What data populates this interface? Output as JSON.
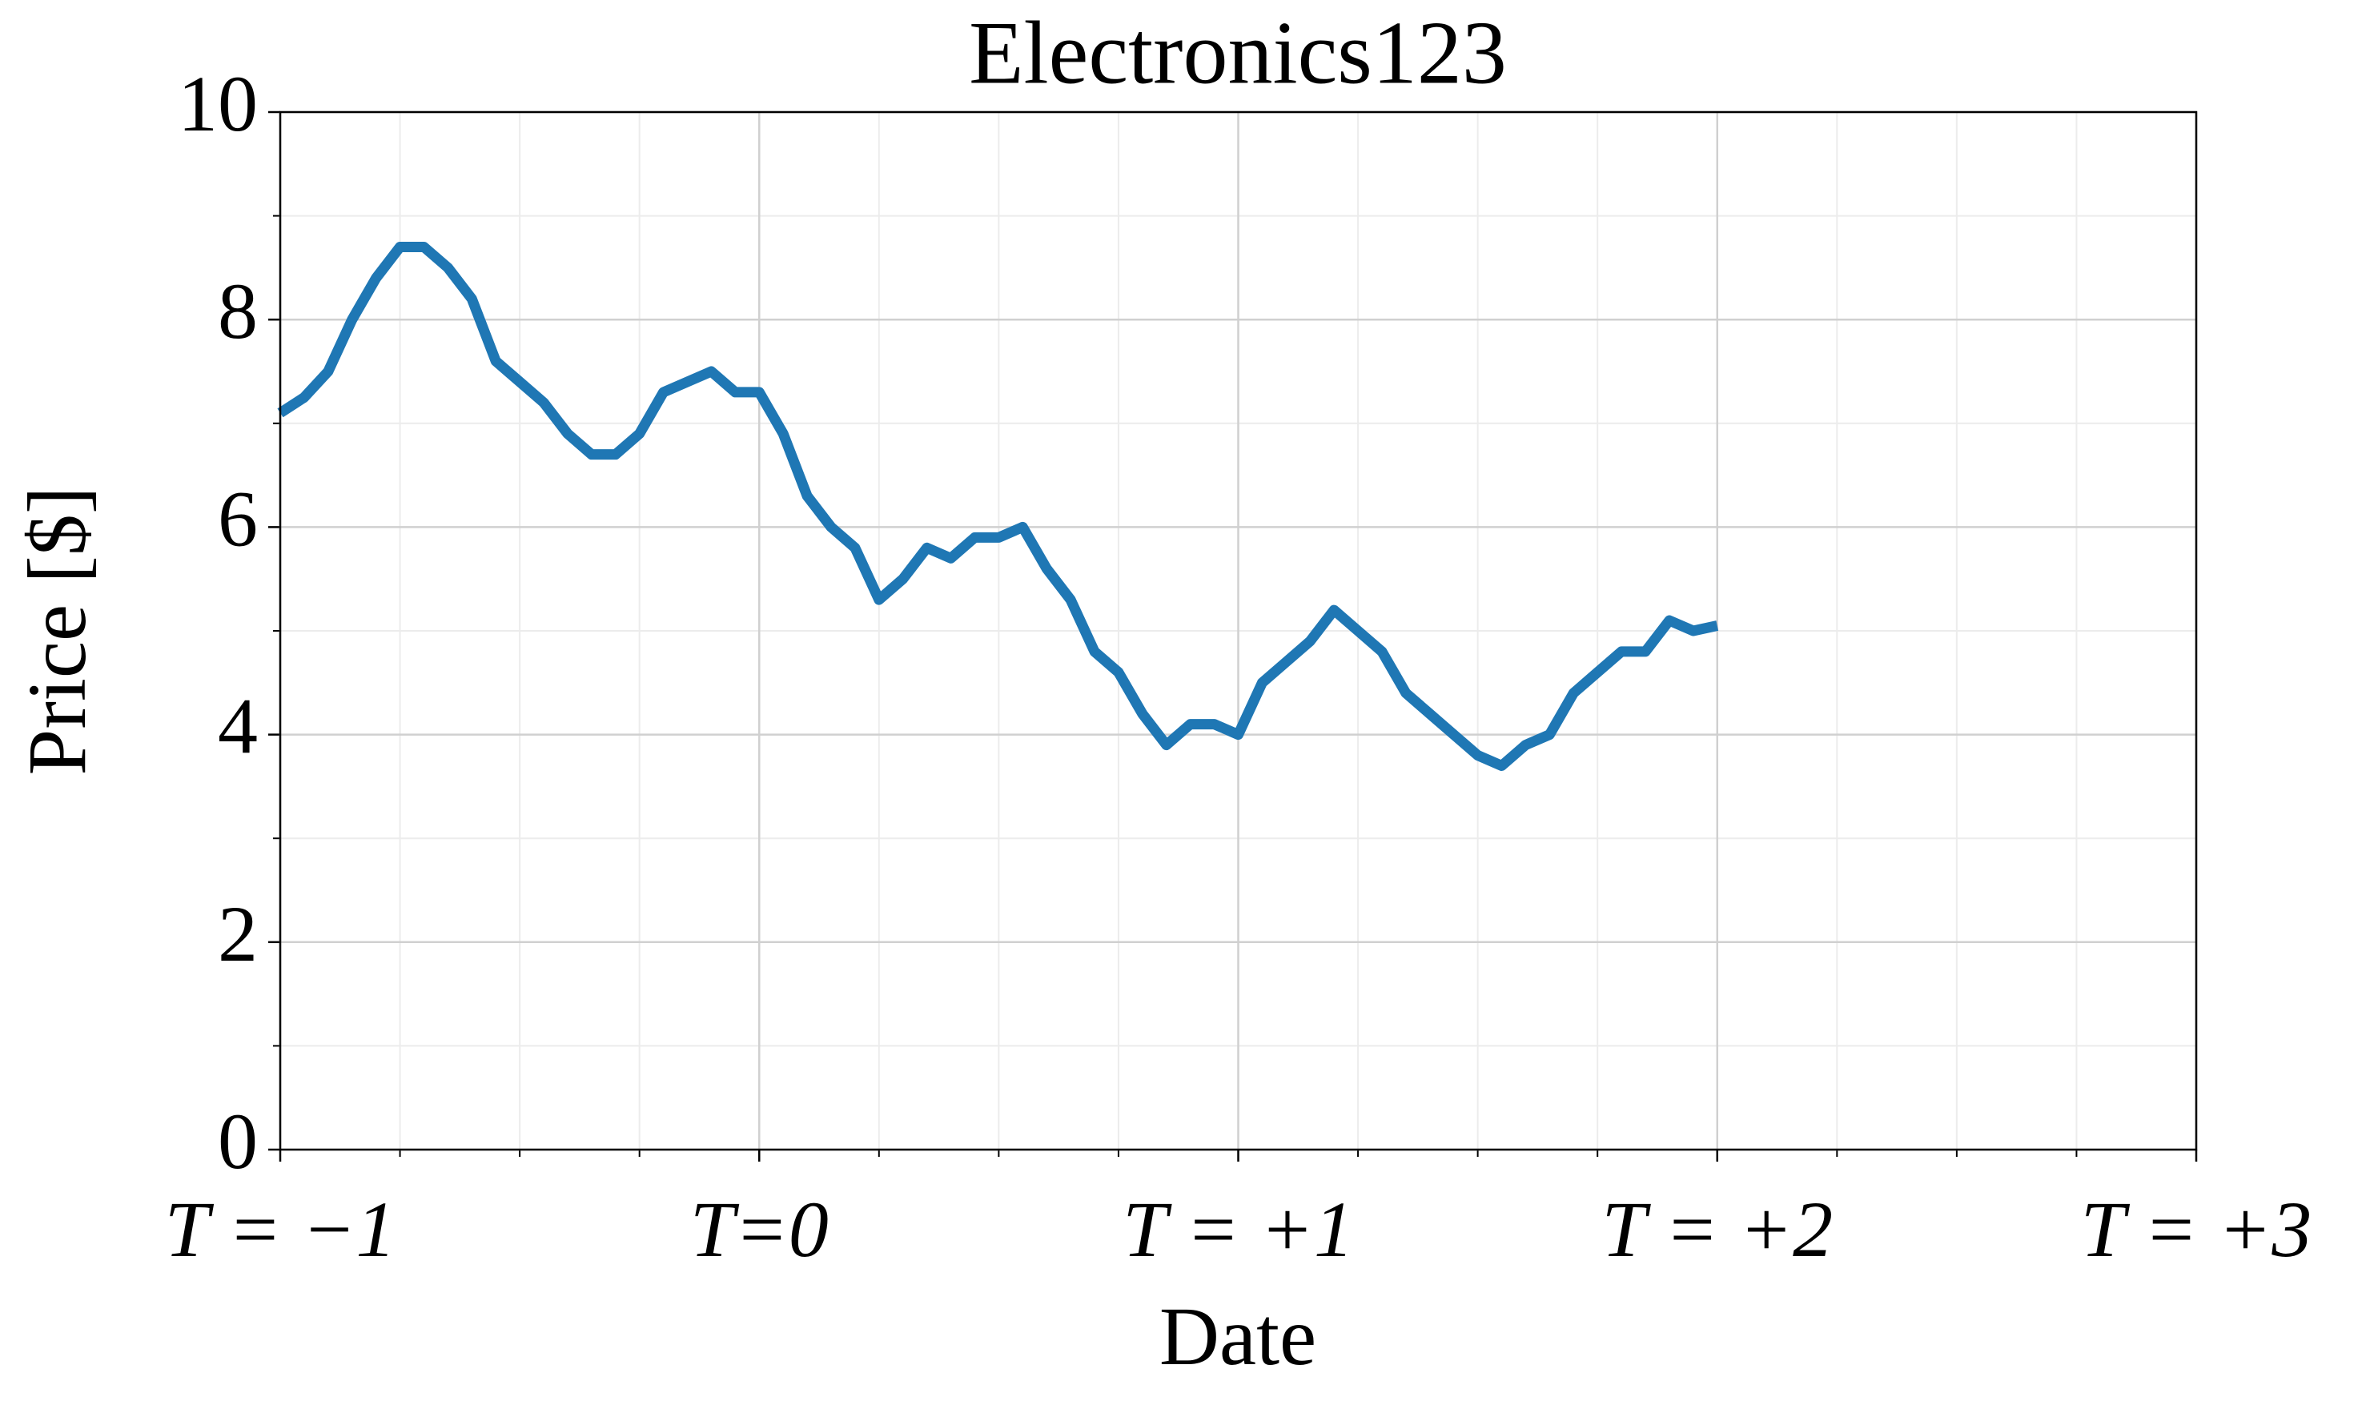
{
  "chart_data": {
    "type": "line",
    "title": "Electronics123",
    "x_label": "Date",
    "y_label": "Price [$]",
    "x": [
      -1.0,
      -0.95,
      -0.9,
      -0.85,
      -0.8,
      -0.75,
      -0.7,
      -0.65,
      -0.6,
      -0.55,
      -0.5,
      -0.45,
      -0.4,
      -0.35,
      -0.3,
      -0.25,
      -0.2,
      -0.15,
      -0.1,
      -0.05,
      0.0,
      0.05,
      0.1,
      0.15,
      0.2,
      0.25,
      0.3,
      0.35,
      0.4,
      0.45,
      0.5,
      0.55,
      0.6,
      0.65,
      0.7,
      0.75,
      0.8,
      0.85,
      0.9,
      0.95,
      1.0,
      1.05,
      1.1,
      1.15,
      1.2,
      1.25,
      1.3,
      1.35,
      1.4,
      1.45,
      1.5,
      1.55,
      1.6,
      1.65,
      1.7,
      1.75,
      1.8,
      1.85,
      1.9,
      1.95,
      2.0
    ],
    "series": [
      {
        "name": "Electronics123",
        "color": "#1f77b4",
        "values": [
          7.1,
          7.25,
          7.5,
          8.0,
          8.4,
          8.7,
          8.7,
          8.5,
          8.2,
          7.6,
          7.4,
          7.2,
          6.9,
          6.7,
          6.7,
          6.9,
          7.3,
          7.4,
          7.5,
          7.3,
          7.3,
          6.9,
          6.3,
          6.0,
          5.8,
          5.3,
          5.5,
          5.8,
          5.7,
          5.9,
          5.9,
          6.0,
          5.6,
          5.3,
          4.8,
          4.6,
          4.2,
          3.9,
          4.1,
          4.1,
          4.0,
          4.5,
          4.7,
          4.9,
          5.2,
          5.0,
          4.8,
          4.4,
          4.2,
          4.0,
          3.8,
          3.7,
          3.9,
          4.0,
          4.4,
          4.6,
          4.8,
          4.8,
          5.1,
          5.0,
          5.05
        ]
      }
    ],
    "xlim": [
      -1,
      3
    ],
    "xticks": [
      {
        "value": -1,
        "label": "T = −1"
      },
      {
        "value": 0,
        "label": "T=0"
      },
      {
        "value": 1,
        "label": "T = +1"
      },
      {
        "value": 2,
        "label": "T = +2"
      },
      {
        "value": 3,
        "label": "T = +3"
      }
    ],
    "ylim": [
      0,
      10
    ],
    "yticks": [
      0,
      2,
      4,
      6,
      8,
      10
    ],
    "grid": true,
    "minor_grid": true
  }
}
